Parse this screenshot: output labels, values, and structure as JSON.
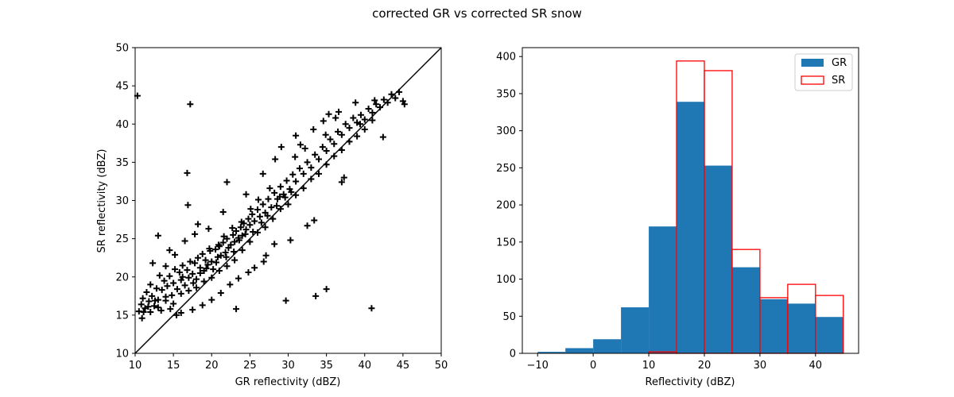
{
  "title": "corrected GR vs corrected SR snow",
  "chart_data": [
    {
      "type": "scatter",
      "xlabel": "GR reflectivity (dBZ)",
      "ylabel": "SR reflectivity (dBZ)",
      "xlim": [
        10,
        50
      ],
      "ylim": [
        10,
        50
      ],
      "xticks": [
        10,
        15,
        20,
        25,
        30,
        35,
        40,
        45,
        50
      ],
      "yticks": [
        10,
        15,
        20,
        25,
        30,
        35,
        40,
        45,
        50
      ],
      "marker": "+",
      "color": "#000000",
      "reference_line": {
        "x": [
          10,
          50
        ],
        "y": [
          10,
          50
        ]
      },
      "points": [
        [
          10.5,
          15.5
        ],
        [
          10.8,
          16.4
        ],
        [
          11.0,
          17.2
        ],
        [
          11.3,
          15.9
        ],
        [
          11.5,
          18.0
        ],
        [
          11.8,
          16.8
        ],
        [
          12.0,
          19.0
        ],
        [
          12.2,
          17.5
        ],
        [
          12.5,
          16.2
        ],
        [
          12.8,
          18.5
        ],
        [
          13.0,
          17.0
        ],
        [
          13.2,
          20.2
        ],
        [
          13.5,
          18.3
        ],
        [
          13.8,
          19.5
        ],
        [
          14.0,
          16.9
        ],
        [
          14.2,
          18.8
        ],
        [
          14.5,
          20.1
        ],
        [
          14.8,
          17.6
        ],
        [
          15.0,
          19.2
        ],
        [
          15.2,
          21.0
        ],
        [
          15.5,
          18.4
        ],
        [
          15.8,
          20.6
        ],
        [
          16.0,
          19.6
        ],
        [
          16.2,
          21.5
        ],
        [
          16.5,
          18.9
        ],
        [
          16.8,
          20.9
        ],
        [
          17.0,
          19.9
        ],
        [
          17.2,
          22.0
        ],
        [
          17.5,
          20.4
        ],
        [
          17.8,
          21.8
        ],
        [
          18.0,
          19.7
        ],
        [
          18.2,
          22.5
        ],
        [
          18.5,
          21.2
        ],
        [
          18.8,
          23.0
        ],
        [
          19.0,
          20.8
        ],
        [
          19.2,
          22.2
        ],
        [
          19.5,
          21.6
        ],
        [
          19.8,
          23.4
        ],
        [
          20.0,
          22.0
        ],
        [
          20.2,
          21.0
        ],
        [
          20.5,
          23.6
        ],
        [
          20.8,
          22.6
        ],
        [
          21.0,
          24.0
        ],
        [
          21.2,
          22.8
        ],
        [
          21.5,
          24.5
        ],
        [
          21.8,
          23.2
        ],
        [
          22.0,
          25.0
        ],
        [
          22.2,
          23.8
        ],
        [
          22.5,
          24.2
        ],
        [
          22.8,
          25.5
        ],
        [
          23.0,
          24.6
        ],
        [
          23.2,
          26.0
        ],
        [
          23.5,
          25.1
        ],
        [
          23.8,
          26.5
        ],
        [
          24.0,
          25.4
        ],
        [
          24.2,
          27.0
        ],
        [
          24.5,
          26.2
        ],
        [
          24.8,
          27.6
        ],
        [
          25.0,
          26.8
        ],
        [
          25.3,
          28.2
        ],
        [
          25.6,
          27.3
        ],
        [
          26.0,
          28.8
        ],
        [
          26.3,
          27.9
        ],
        [
          26.7,
          29.5
        ],
        [
          27.0,
          28.4
        ],
        [
          27.4,
          30.2
        ],
        [
          27.8,
          29.1
        ],
        [
          28.2,
          31.0
        ],
        [
          28.6,
          30.2
        ],
        [
          29.0,
          31.8
        ],
        [
          29.4,
          30.8
        ],
        [
          29.8,
          32.6
        ],
        [
          30.2,
          31.5
        ],
        [
          30.6,
          33.4
        ],
        [
          31.0,
          32.5
        ],
        [
          31.5,
          34.2
        ],
        [
          32.0,
          33.5
        ],
        [
          32.5,
          35.0
        ],
        [
          33.0,
          34.3
        ],
        [
          33.5,
          36.0
        ],
        [
          34.0,
          35.4
        ],
        [
          34.5,
          37.0
        ],
        [
          35.0,
          36.5
        ],
        [
          35.5,
          38.0
        ],
        [
          36.0,
          37.4
        ],
        [
          36.5,
          39.0
        ],
        [
          37.0,
          38.6
        ],
        [
          37.5,
          40.0
        ],
        [
          38.0,
          39.5
        ],
        [
          38.5,
          40.8
        ],
        [
          39.0,
          40.2
        ],
        [
          39.5,
          41.2
        ],
        [
          40.0,
          40.6
        ],
        [
          40.5,
          42.0
        ],
        [
          41.0,
          41.5
        ],
        [
          41.5,
          42.6
        ],
        [
          42.0,
          42.2
        ],
        [
          42.5,
          43.2
        ],
        [
          43.0,
          42.8
        ],
        [
          43.5,
          43.9
        ],
        [
          44.0,
          43.4
        ],
        [
          44.5,
          44.2
        ],
        [
          45.0,
          43.0
        ],
        [
          45.2,
          42.6
        ],
        [
          12.0,
          15.4
        ],
        [
          13.0,
          16.0
        ],
        [
          14.0,
          17.4
        ],
        [
          15.0,
          16.5
        ],
        [
          16.0,
          17.8
        ],
        [
          17.0,
          18.2
        ],
        [
          18.0,
          18.6
        ],
        [
          19.0,
          19.4
        ],
        [
          20.0,
          19.9
        ],
        [
          21.0,
          20.8
        ],
        [
          22.0,
          21.4
        ],
        [
          23.0,
          22.2
        ],
        [
          24.0,
          23.5
        ],
        [
          25.0,
          24.6
        ],
        [
          26.0,
          25.8
        ],
        [
          27.0,
          26.5
        ],
        [
          28.0,
          27.6
        ],
        [
          29.0,
          28.9
        ],
        [
          30.0,
          29.5
        ],
        [
          31.0,
          30.7
        ],
        [
          32.0,
          31.6
        ],
        [
          33.0,
          32.8
        ],
        [
          34.0,
          33.5
        ],
        [
          35.0,
          34.7
        ],
        [
          36.0,
          35.8
        ],
        [
          37.0,
          36.6
        ],
        [
          38.0,
          37.7
        ],
        [
          39.0,
          38.4
        ],
        [
          40.0,
          39.3
        ],
        [
          41.0,
          40.5
        ],
        [
          10.3,
          43.7
        ],
        [
          17.2,
          42.6
        ],
        [
          16.8,
          33.6
        ],
        [
          16.9,
          29.4
        ],
        [
          23.2,
          15.8
        ],
        [
          29.7,
          16.9
        ],
        [
          33.6,
          17.5
        ],
        [
          35.0,
          18.4
        ],
        [
          40.9,
          15.9
        ],
        [
          42.4,
          38.3
        ],
        [
          37.3,
          33.0
        ],
        [
          37.0,
          32.4
        ],
        [
          33.4,
          27.4
        ],
        [
          32.5,
          26.7
        ],
        [
          30.3,
          24.8
        ],
        [
          28.2,
          24.3
        ],
        [
          27.1,
          22.8
        ],
        [
          26.8,
          22.0
        ],
        [
          25.6,
          21.2
        ],
        [
          24.8,
          20.6
        ],
        [
          23.5,
          19.8
        ],
        [
          22.4,
          19.0
        ],
        [
          21.2,
          17.9
        ],
        [
          20.0,
          17.0
        ],
        [
          18.8,
          16.3
        ],
        [
          17.5,
          15.7
        ],
        [
          16.0,
          15.3
        ],
        [
          15.4,
          15.0
        ],
        [
          14.6,
          15.8
        ],
        [
          13.4,
          15.6
        ],
        [
          12.6,
          16.9
        ],
        [
          11.7,
          16.1
        ],
        [
          11.1,
          15.4
        ],
        [
          10.9,
          14.6
        ],
        [
          12.3,
          21.8
        ],
        [
          13.0,
          25.4
        ],
        [
          14.5,
          23.5
        ],
        [
          16.5,
          24.7
        ],
        [
          17.8,
          25.6
        ],
        [
          18.2,
          26.9
        ],
        [
          19.6,
          26.3
        ],
        [
          21.5,
          28.5
        ],
        [
          22.0,
          32.4
        ],
        [
          24.5,
          30.8
        ],
        [
          26.7,
          33.5
        ],
        [
          28.3,
          35.4
        ],
        [
          29.1,
          37.0
        ],
        [
          31.0,
          38.5
        ],
        [
          32.2,
          36.8
        ],
        [
          33.3,
          39.3
        ],
        [
          34.6,
          40.4
        ],
        [
          36.2,
          40.8
        ],
        [
          36.6,
          41.6
        ],
        [
          38.8,
          42.8
        ],
        [
          39.4,
          40.0
        ],
        [
          41.3,
          43.1
        ],
        [
          19.7,
          23.7
        ],
        [
          20.9,
          24.2
        ],
        [
          21.6,
          25.3
        ],
        [
          22.7,
          26.4
        ],
        [
          23.9,
          27.2
        ],
        [
          25.1,
          28.9
        ],
        [
          26.1,
          30.1
        ],
        [
          27.6,
          31.6
        ],
        [
          28.9,
          30.5
        ],
        [
          30.9,
          35.7
        ],
        [
          31.6,
          37.3
        ],
        [
          34.9,
          38.6
        ],
        [
          35.3,
          41.3
        ],
        [
          15.2,
          22.9
        ],
        [
          14.0,
          21.4
        ],
        [
          16.2,
          20.0
        ],
        [
          17.6,
          19.2
        ],
        [
          18.5,
          20.5
        ],
        [
          19.3,
          21.1
        ],
        [
          20.6,
          21.9
        ],
        [
          21.9,
          22.6
        ],
        [
          22.9,
          23.3
        ],
        [
          23.6,
          24.8
        ],
        [
          24.4,
          25.6
        ],
        [
          25.4,
          25.9
        ],
        [
          26.5,
          27.1
        ],
        [
          27.3,
          28.0
        ],
        [
          28.5,
          29.3
        ],
        [
          29.6,
          30.4
        ],
        [
          30.4,
          31.1
        ]
      ]
    },
    {
      "type": "histogram",
      "xlabel": "Reflectivity (dBZ)",
      "ylabel": "",
      "xlim": [
        -12.75,
        47.75
      ],
      "ylim": [
        0,
        412
      ],
      "xticks": [
        -10,
        0,
        10,
        20,
        30,
        40
      ],
      "yticks": [
        0,
        50,
        100,
        150,
        200,
        250,
        300,
        350,
        400
      ],
      "legend_position": "top-right",
      "series": [
        {
          "name": "GR",
          "style": "filled",
          "color": "#1f77b4",
          "bin_edges": [
            -10,
            -5,
            0,
            5,
            10,
            15,
            20,
            25,
            30,
            35,
            40,
            45
          ],
          "counts": [
            2,
            7,
            19,
            62,
            171,
            339,
            253,
            116,
            73,
            67,
            49
          ]
        },
        {
          "name": "SR",
          "style": "outline",
          "color": "#ff0000",
          "bin_edges": [
            10,
            15,
            20,
            25,
            30,
            35,
            40,
            45
          ],
          "counts": [
            2,
            394,
            381,
            140,
            75,
            93,
            78
          ]
        }
      ]
    }
  ]
}
